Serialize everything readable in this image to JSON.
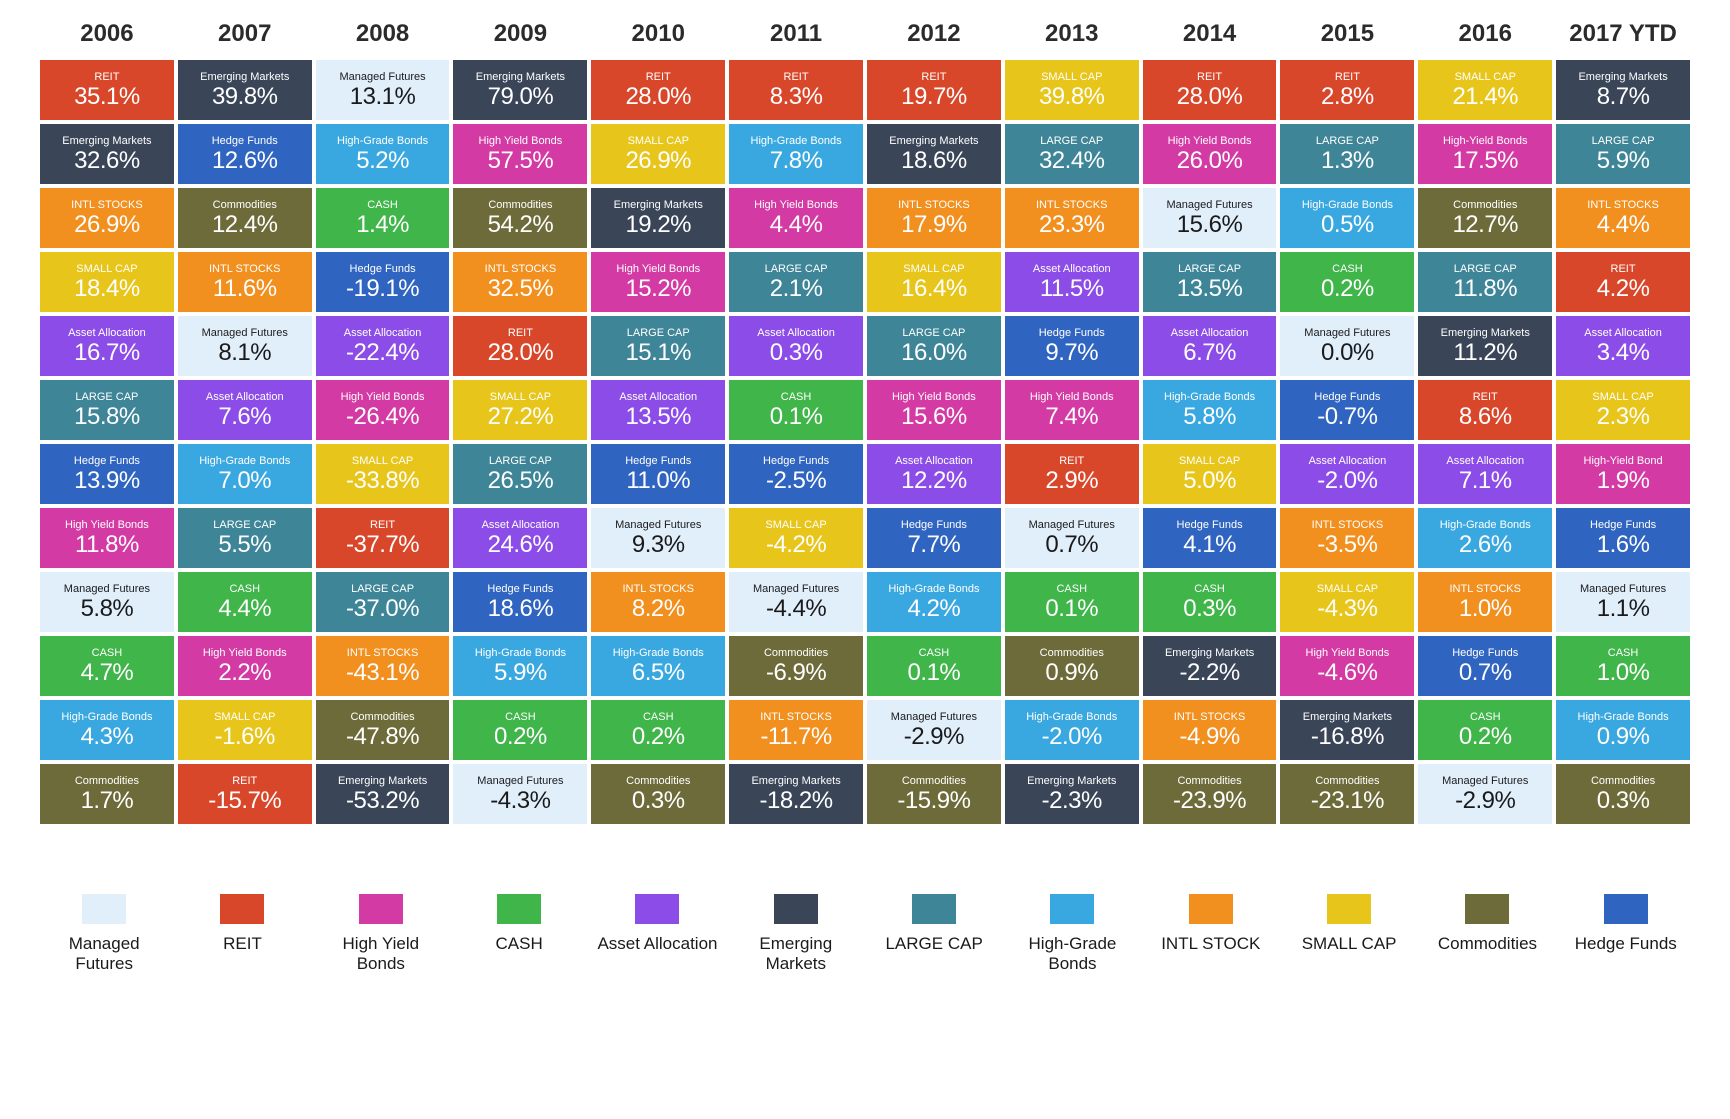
{
  "colors": {
    "managed_futures": "#e1effb",
    "reit": "#d9472b",
    "high_yield_bonds": "#d43aa3",
    "cash": "#3fb54a",
    "asset_allocation": "#8c4ce8",
    "emerging_markets": "#3a4558",
    "large_cap": "#3e8597",
    "high_grade_bonds": "#3aa8e0",
    "intl_stocks": "#f18f1f",
    "small_cap": "#e8c51a",
    "commodities": "#6e6b3a",
    "hedge_funds": "#2f64c0"
  },
  "dark_text_classes": [
    "managed_futures"
  ],
  "years": [
    "2006",
    "2007",
    "2008",
    "2009",
    "2010",
    "2011",
    "2012",
    "2013",
    "2014",
    "2015",
    "2016",
    "2017 YTD"
  ],
  "grid": [
    [
      {
        "c": "reit",
        "l": "REIT",
        "v": "35.1%"
      },
      {
        "c": "emerging_markets",
        "l": "Emerging Markets",
        "v": "39.8%"
      },
      {
        "c": "managed_futures",
        "l": "Managed Futures",
        "v": "13.1%"
      },
      {
        "c": "emerging_markets",
        "l": "Emerging Markets",
        "v": "79.0%"
      },
      {
        "c": "reit",
        "l": "REIT",
        "v": "28.0%"
      },
      {
        "c": "reit",
        "l": "REIT",
        "v": "8.3%"
      },
      {
        "c": "reit",
        "l": "REIT",
        "v": "19.7%"
      },
      {
        "c": "small_cap",
        "l": "SMALL CAP",
        "v": "39.8%"
      },
      {
        "c": "reit",
        "l": "REIT",
        "v": "28.0%"
      },
      {
        "c": "reit",
        "l": "REIT",
        "v": "2.8%"
      },
      {
        "c": "small_cap",
        "l": "SMALL CAP",
        "v": "21.4%"
      },
      {
        "c": "emerging_markets",
        "l": "Emerging Markets",
        "v": "8.7%"
      }
    ],
    [
      {
        "c": "emerging_markets",
        "l": "Emerging Markets",
        "v": "32.6%"
      },
      {
        "c": "hedge_funds",
        "l": "Hedge Funds",
        "v": "12.6%"
      },
      {
        "c": "high_grade_bonds",
        "l": "High-Grade Bonds",
        "v": "5.2%"
      },
      {
        "c": "high_yield_bonds",
        "l": "High Yield Bonds",
        "v": "57.5%"
      },
      {
        "c": "small_cap",
        "l": "SMALL CAP",
        "v": "26.9%"
      },
      {
        "c": "high_grade_bonds",
        "l": "High-Grade Bonds",
        "v": "7.8%"
      },
      {
        "c": "emerging_markets",
        "l": "Emerging Markets",
        "v": "18.6%"
      },
      {
        "c": "large_cap",
        "l": "LARGE CAP",
        "v": "32.4%"
      },
      {
        "c": "high_yield_bonds",
        "l": "High Yield Bonds",
        "v": "26.0%"
      },
      {
        "c": "large_cap",
        "l": "LARGE CAP",
        "v": "1.3%"
      },
      {
        "c": "high_yield_bonds",
        "l": "High-Yield Bonds",
        "v": "17.5%"
      },
      {
        "c": "large_cap",
        "l": "LARGE CAP",
        "v": "5.9%"
      }
    ],
    [
      {
        "c": "intl_stocks",
        "l": "INTL STOCKS",
        "v": "26.9%"
      },
      {
        "c": "commodities",
        "l": "Commodities",
        "v": "12.4%"
      },
      {
        "c": "cash",
        "l": "CASH",
        "v": "1.4%"
      },
      {
        "c": "commodities",
        "l": "Commodities",
        "v": "54.2%"
      },
      {
        "c": "emerging_markets",
        "l": "Emerging Markets",
        "v": "19.2%"
      },
      {
        "c": "high_yield_bonds",
        "l": "High Yield Bonds",
        "v": "4.4%"
      },
      {
        "c": "intl_stocks",
        "l": "INTL STOCKS",
        "v": "17.9%"
      },
      {
        "c": "intl_stocks",
        "l": "INTL STOCKS",
        "v": "23.3%"
      },
      {
        "c": "managed_futures",
        "l": "Managed Futures",
        "v": "15.6%"
      },
      {
        "c": "high_grade_bonds",
        "l": "High-Grade Bonds",
        "v": "0.5%"
      },
      {
        "c": "commodities",
        "l": "Commodities",
        "v": "12.7%"
      },
      {
        "c": "intl_stocks",
        "l": "INTL STOCKS",
        "v": "4.4%"
      }
    ],
    [
      {
        "c": "small_cap",
        "l": "SMALL CAP",
        "v": "18.4%"
      },
      {
        "c": "intl_stocks",
        "l": "INTL STOCKS",
        "v": "11.6%"
      },
      {
        "c": "hedge_funds",
        "l": "Hedge Funds",
        "v": "-19.1%"
      },
      {
        "c": "intl_stocks",
        "l": "INTL STOCKS",
        "v": "32.5%"
      },
      {
        "c": "high_yield_bonds",
        "l": "High Yield Bonds",
        "v": "15.2%"
      },
      {
        "c": "large_cap",
        "l": "LARGE CAP",
        "v": "2.1%"
      },
      {
        "c": "small_cap",
        "l": "SMALL CAP",
        "v": "16.4%"
      },
      {
        "c": "asset_allocation",
        "l": "Asset Allocation",
        "v": "11.5%"
      },
      {
        "c": "large_cap",
        "l": "LARGE CAP",
        "v": "13.5%"
      },
      {
        "c": "cash",
        "l": "CASH",
        "v": "0.2%"
      },
      {
        "c": "large_cap",
        "l": "LARGE CAP",
        "v": "11.8%"
      },
      {
        "c": "reit",
        "l": "REIT",
        "v": "4.2%"
      }
    ],
    [
      {
        "c": "asset_allocation",
        "l": "Asset Allocation",
        "v": "16.7%"
      },
      {
        "c": "managed_futures",
        "l": "Managed Futures",
        "v": "8.1%"
      },
      {
        "c": "asset_allocation",
        "l": "Asset Allocation",
        "v": "-22.4%"
      },
      {
        "c": "reit",
        "l": "REIT",
        "v": "28.0%"
      },
      {
        "c": "large_cap",
        "l": "LARGE CAP",
        "v": "15.1%"
      },
      {
        "c": "asset_allocation",
        "l": "Asset Allocation",
        "v": "0.3%"
      },
      {
        "c": "large_cap",
        "l": "LARGE CAP",
        "v": "16.0%"
      },
      {
        "c": "hedge_funds",
        "l": "Hedge Funds",
        "v": "9.7%"
      },
      {
        "c": "asset_allocation",
        "l": "Asset Allocation",
        "v": "6.7%"
      },
      {
        "c": "managed_futures",
        "l": "Managed Futures",
        "v": "0.0%"
      },
      {
        "c": "emerging_markets",
        "l": "Emerging Markets",
        "v": "11.2%"
      },
      {
        "c": "asset_allocation",
        "l": "Asset Allocation",
        "v": "3.4%"
      }
    ],
    [
      {
        "c": "large_cap",
        "l": "LARGE CAP",
        "v": "15.8%"
      },
      {
        "c": "asset_allocation",
        "l": "Asset Allocation",
        "v": "7.6%"
      },
      {
        "c": "high_yield_bonds",
        "l": "High Yield Bonds",
        "v": "-26.4%"
      },
      {
        "c": "small_cap",
        "l": "SMALL CAP",
        "v": "27.2%"
      },
      {
        "c": "asset_allocation",
        "l": "Asset Allocation",
        "v": "13.5%"
      },
      {
        "c": "cash",
        "l": "CASH",
        "v": "0.1%"
      },
      {
        "c": "high_yield_bonds",
        "l": "High Yield Bonds",
        "v": "15.6%"
      },
      {
        "c": "high_yield_bonds",
        "l": "High Yield Bonds",
        "v": "7.4%"
      },
      {
        "c": "high_grade_bonds",
        "l": "High-Grade Bonds",
        "v": "5.8%"
      },
      {
        "c": "hedge_funds",
        "l": "Hedge Funds",
        "v": "-0.7%"
      },
      {
        "c": "reit",
        "l": "REIT",
        "v": "8.6%"
      },
      {
        "c": "small_cap",
        "l": "SMALL CAP",
        "v": "2.3%"
      }
    ],
    [
      {
        "c": "hedge_funds",
        "l": "Hedge Funds",
        "v": "13.9%"
      },
      {
        "c": "high_grade_bonds",
        "l": "High-Grade Bonds",
        "v": "7.0%"
      },
      {
        "c": "small_cap",
        "l": "SMALL CAP",
        "v": "-33.8%"
      },
      {
        "c": "large_cap",
        "l": "LARGE CAP",
        "v": "26.5%"
      },
      {
        "c": "hedge_funds",
        "l": "Hedge Funds",
        "v": "11.0%"
      },
      {
        "c": "hedge_funds",
        "l": "Hedge Funds",
        "v": "-2.5%"
      },
      {
        "c": "asset_allocation",
        "l": "Asset Allocation",
        "v": "12.2%"
      },
      {
        "c": "reit",
        "l": "REIT",
        "v": "2.9%"
      },
      {
        "c": "small_cap",
        "l": "SMALL CAP",
        "v": "5.0%"
      },
      {
        "c": "asset_allocation",
        "l": "Asset Allocation",
        "v": "-2.0%"
      },
      {
        "c": "asset_allocation",
        "l": "Asset Allocation",
        "v": "7.1%"
      },
      {
        "c": "high_yield_bonds",
        "l": "High-Yield Bond",
        "v": "1.9%"
      }
    ],
    [
      {
        "c": "high_yield_bonds",
        "l": "High Yield Bonds",
        "v": "11.8%"
      },
      {
        "c": "large_cap",
        "l": "LARGE CAP",
        "v": "5.5%"
      },
      {
        "c": "reit",
        "l": "REIT",
        "v": "-37.7%"
      },
      {
        "c": "asset_allocation",
        "l": "Asset Allocation",
        "v": "24.6%"
      },
      {
        "c": "managed_futures",
        "l": "Managed Futures",
        "v": "9.3%"
      },
      {
        "c": "small_cap",
        "l": "SMALL CAP",
        "v": "-4.2%"
      },
      {
        "c": "hedge_funds",
        "l": "Hedge Funds",
        "v": "7.7%"
      },
      {
        "c": "managed_futures",
        "l": "Managed Futures",
        "v": "0.7%"
      },
      {
        "c": "hedge_funds",
        "l": "Hedge Funds",
        "v": "4.1%"
      },
      {
        "c": "intl_stocks",
        "l": "INTL STOCKS",
        "v": "-3.5%"
      },
      {
        "c": "high_grade_bonds",
        "l": "High-Grade Bonds",
        "v": "2.6%"
      },
      {
        "c": "hedge_funds",
        "l": "Hedge Funds",
        "v": "1.6%"
      }
    ],
    [
      {
        "c": "managed_futures",
        "l": "Managed Futures",
        "v": "5.8%"
      },
      {
        "c": "cash",
        "l": "CASH",
        "v": "4.4%"
      },
      {
        "c": "large_cap",
        "l": "LARGE CAP",
        "v": "-37.0%"
      },
      {
        "c": "hedge_funds",
        "l": "Hedge Funds",
        "v": "18.6%"
      },
      {
        "c": "intl_stocks",
        "l": "INTL STOCKS",
        "v": "8.2%"
      },
      {
        "c": "managed_futures",
        "l": "Managed Futures",
        "v": "-4.4%"
      },
      {
        "c": "high_grade_bonds",
        "l": "High-Grade Bonds",
        "v": "4.2%"
      },
      {
        "c": "cash",
        "l": "CASH",
        "v": "0.1%"
      },
      {
        "c": "cash",
        "l": "CASH",
        "v": "0.3%"
      },
      {
        "c": "small_cap",
        "l": "SMALL CAP",
        "v": "-4.3%"
      },
      {
        "c": "intl_stocks",
        "l": "INTL STOCKS",
        "v": "1.0%"
      },
      {
        "c": "managed_futures",
        "l": "Managed Futures",
        "v": "1.1%"
      }
    ],
    [
      {
        "c": "cash",
        "l": "CASH",
        "v": "4.7%"
      },
      {
        "c": "high_yield_bonds",
        "l": "High Yield Bonds",
        "v": "2.2%"
      },
      {
        "c": "intl_stocks",
        "l": "INTL STOCKS",
        "v": "-43.1%"
      },
      {
        "c": "high_grade_bonds",
        "l": "High-Grade Bonds",
        "v": "5.9%"
      },
      {
        "c": "high_grade_bonds",
        "l": "High-Grade Bonds",
        "v": "6.5%"
      },
      {
        "c": "commodities",
        "l": "Commodities",
        "v": "-6.9%"
      },
      {
        "c": "cash",
        "l": "CASH",
        "v": "0.1%"
      },
      {
        "c": "commodities",
        "l": "Commodities",
        "v": "0.9%"
      },
      {
        "c": "emerging_markets",
        "l": "Emerging Markets",
        "v": "-2.2%"
      },
      {
        "c": "high_yield_bonds",
        "l": "High Yield Bonds",
        "v": "-4.6%"
      },
      {
        "c": "hedge_funds",
        "l": "Hedge Funds",
        "v": "0.7%"
      },
      {
        "c": "cash",
        "l": "CASH",
        "v": "1.0%"
      }
    ],
    [
      {
        "c": "high_grade_bonds",
        "l": "High-Grade Bonds",
        "v": "4.3%"
      },
      {
        "c": "small_cap",
        "l": "SMALL CAP",
        "v": "-1.6%"
      },
      {
        "c": "commodities",
        "l": "Commodities",
        "v": "-47.8%"
      },
      {
        "c": "cash",
        "l": "CASH",
        "v": "0.2%"
      },
      {
        "c": "cash",
        "l": "CASH",
        "v": "0.2%"
      },
      {
        "c": "intl_stocks",
        "l": "INTL STOCKS",
        "v": "-11.7%"
      },
      {
        "c": "managed_futures",
        "l": "Managed Futures",
        "v": "-2.9%"
      },
      {
        "c": "high_grade_bonds",
        "l": "High-Grade Bonds",
        "v": "-2.0%"
      },
      {
        "c": "intl_stocks",
        "l": "INTL STOCKS",
        "v": "-4.9%"
      },
      {
        "c": "emerging_markets",
        "l": "Emerging Markets",
        "v": "-16.8%"
      },
      {
        "c": "cash",
        "l": "CASH",
        "v": "0.2%"
      },
      {
        "c": "high_grade_bonds",
        "l": "High-Grade Bonds",
        "v": "0.9%"
      }
    ],
    [
      {
        "c": "commodities",
        "l": "Commodities",
        "v": "1.7%"
      },
      {
        "c": "reit",
        "l": "REIT",
        "v": "-15.7%"
      },
      {
        "c": "emerging_markets",
        "l": "Emerging Markets",
        "v": "-53.2%"
      },
      {
        "c": "managed_futures",
        "l": "Managed Futures",
        "v": "-4.3%"
      },
      {
        "c": "commodities",
        "l": "Commodities",
        "v": "0.3%"
      },
      {
        "c": "emerging_markets",
        "l": "Emerging Markets",
        "v": "-18.2%"
      },
      {
        "c": "commodities",
        "l": "Commodities",
        "v": "-15.9%"
      },
      {
        "c": "emerging_markets",
        "l": "Emerging Markets",
        "v": "-2.3%"
      },
      {
        "c": "commodities",
        "l": "Commodities",
        "v": "-23.9%"
      },
      {
        "c": "commodities",
        "l": "Commodities",
        "v": "-23.1%"
      },
      {
        "c": "managed_futures",
        "l": "Managed Futures",
        "v": "-2.9%"
      },
      {
        "c": "commodities",
        "l": "Commodities",
        "v": "0.3%"
      }
    ]
  ],
  "legend": [
    {
      "c": "managed_futures",
      "l": "Managed Futures"
    },
    {
      "c": "reit",
      "l": "REIT"
    },
    {
      "c": "high_yield_bonds",
      "l": "High Yield Bonds"
    },
    {
      "c": "cash",
      "l": "CASH"
    },
    {
      "c": "asset_allocation",
      "l": "Asset Allocation"
    },
    {
      "c": "emerging_markets",
      "l": "Emerging Markets"
    },
    {
      "c": "large_cap",
      "l": "LARGE CAP"
    },
    {
      "c": "high_grade_bonds",
      "l": "High-Grade Bonds"
    },
    {
      "c": "intl_stocks",
      "l": "INTL STOCK"
    },
    {
      "c": "small_cap",
      "l": "SMALL CAP"
    },
    {
      "c": "commodities",
      "l": "Commodities"
    },
    {
      "c": "hedge_funds",
      "l": "Hedge Funds"
    }
  ]
}
